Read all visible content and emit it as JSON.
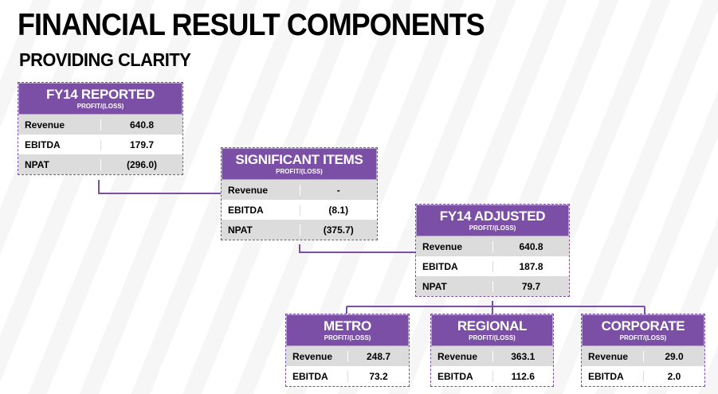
{
  "title": "FINANCIAL RESULT COMPONENTS",
  "subtitle": "PROVIDING CLARITY",
  "colors": {
    "header": "#7b4fa6",
    "connector": "#7b4fa6",
    "row_shade": "#dcdcdc"
  },
  "boxes": {
    "fy14_reported": {
      "name": "FY14 REPORTED",
      "sub": "PROFIT/(LOSS)",
      "rows": [
        {
          "label": "Revenue",
          "value": "640.8"
        },
        {
          "label": "EBITDA",
          "value": "179.7"
        },
        {
          "label": "NPAT",
          "value": "(296.0)"
        }
      ]
    },
    "significant_items": {
      "name": "SIGNIFICANT ITEMS",
      "sub": "PROFIT/(LOSS)",
      "rows": [
        {
          "label": "Revenue",
          "value": "-"
        },
        {
          "label": "EBITDA",
          "value": "(8.1)"
        },
        {
          "label": "NPAT",
          "value": "(375.7)"
        }
      ]
    },
    "fy14_adjusted": {
      "name": "FY14 ADJUSTED",
      "sub": "PROFIT/(LOSS)",
      "rows": [
        {
          "label": "Revenue",
          "value": "640.8"
        },
        {
          "label": "EBITDA",
          "value": "187.8"
        },
        {
          "label": "NPAT",
          "value": "79.7"
        }
      ]
    },
    "metro": {
      "name": "METRO",
      "sub": "PROFIT/(LOSS)",
      "rows": [
        {
          "label": "Revenue",
          "value": "248.7"
        },
        {
          "label": "EBITDA",
          "value": "73.2"
        }
      ]
    },
    "regional": {
      "name": "REGIONAL",
      "sub": "PROFIT/(LOSS)",
      "rows": [
        {
          "label": "Revenue",
          "value": "363.1"
        },
        {
          "label": "EBITDA",
          "value": "112.6"
        }
      ]
    },
    "corporate": {
      "name": "CORPORATE",
      "sub": "PROFIT/(LOSS)",
      "rows": [
        {
          "label": "Revenue",
          "value": "29.0"
        },
        {
          "label": "EBITDA",
          "value": "2.0"
        }
      ]
    }
  }
}
